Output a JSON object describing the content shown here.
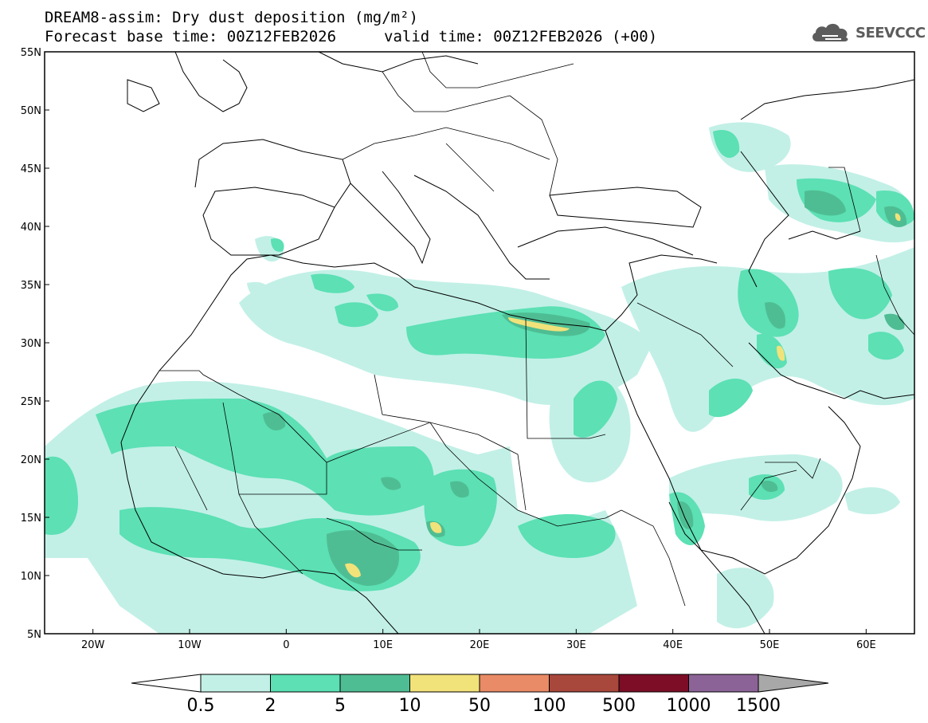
{
  "header": {
    "line1": "DREAM8-assim: Dry dust deposition (mg/m²)",
    "line2a": "Forecast base time: 00Z12FEB2026",
    "line2b": "valid time: 00Z12FEB2026 (+00)"
  },
  "logo": {
    "icon": "cloud-icon",
    "text": "SEEVCCC"
  },
  "map": {
    "lon_range": [
      -25,
      65
    ],
    "lat_range": [
      5,
      55
    ],
    "lon_ticks": [
      {
        "value": -20,
        "label": "20W"
      },
      {
        "value": -10,
        "label": "10W"
      },
      {
        "value": 0,
        "label": "0"
      },
      {
        "value": 10,
        "label": "10E"
      },
      {
        "value": 20,
        "label": "20E"
      },
      {
        "value": 30,
        "label": "30E"
      },
      {
        "value": 40,
        "label": "40E"
      },
      {
        "value": 50,
        "label": "50E"
      },
      {
        "value": 60,
        "label": "60E"
      }
    ],
    "lat_ticks": [
      {
        "value": 55,
        "label": "55N"
      },
      {
        "value": 50,
        "label": "50N"
      },
      {
        "value": 45,
        "label": "45N"
      },
      {
        "value": 40,
        "label": "40N"
      },
      {
        "value": 35,
        "label": "35N"
      },
      {
        "value": 30,
        "label": "30N"
      },
      {
        "value": 25,
        "label": "25N"
      },
      {
        "value": 20,
        "label": "20N"
      },
      {
        "value": 15,
        "label": "15N"
      },
      {
        "value": 10,
        "label": "10N"
      },
      {
        "value": 5,
        "label": "5N"
      }
    ]
  },
  "colorbar": {
    "colors": [
      "#c2f0e6",
      "#5ce0b4",
      "#4fbd93",
      "#f2e27a",
      "#e98b66",
      "#a8473b",
      "#7d0d26",
      "#8c6396",
      "#a8a8a8"
    ],
    "labels": [
      "0.5",
      "2",
      "5",
      "10",
      "50",
      "100",
      "500",
      "1000",
      "1500"
    ]
  }
}
